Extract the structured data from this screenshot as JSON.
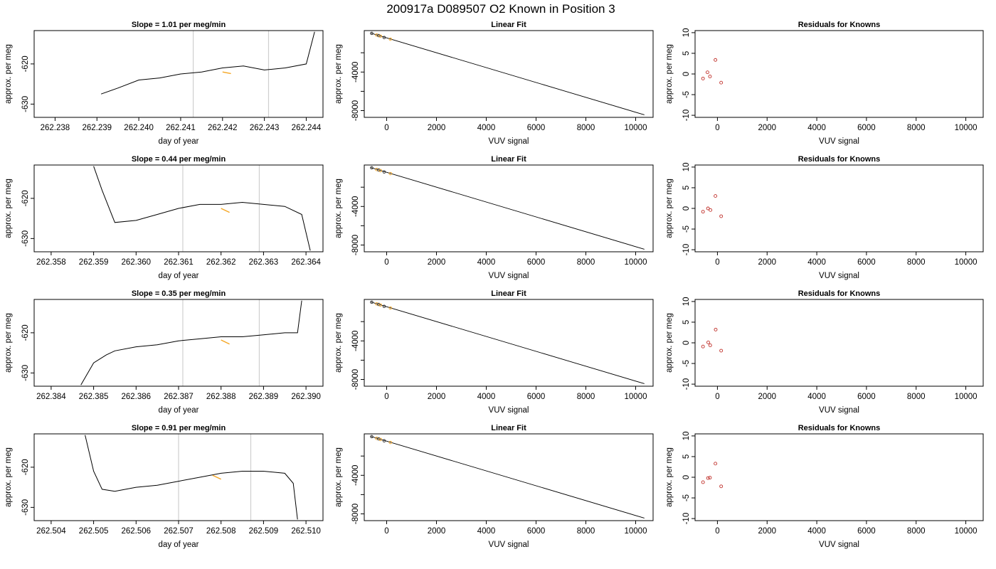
{
  "figure": {
    "title": "200917a      D089507    O2 Known in Position  3"
  },
  "chart_data": [
    {
      "type": "line",
      "row": 1,
      "panel": "time",
      "title": "Slope =  1.01  per meg/min",
      "xlabel": "day of year",
      "ylabel": "approx. per meg",
      "xlim": [
        262.2375,
        262.2444
      ],
      "ylim": [
        -633.3,
        -611.7
      ],
      "xticks": [
        "262.238",
        "262.239",
        "262.240",
        "262.241",
        "262.242",
        "262.243",
        "262.244"
      ],
      "xtick_values": [
        262.238,
        262.239,
        262.24,
        262.241,
        262.242,
        262.243,
        262.244
      ],
      "yticks": [
        "-630",
        "-620"
      ],
      "ytick_values": [
        -630,
        -620
      ],
      "vlines": [
        262.2413,
        262.2431
      ],
      "series": [
        {
          "values_x": [
            262.2391,
            262.2395,
            262.24,
            262.2405,
            262.241,
            262.2415,
            262.242,
            262.2425,
            262.243,
            262.2435,
            262.244,
            262.2442
          ],
          "values_y": [
            -627.5,
            -626.0,
            -624.0,
            -623.5,
            -622.5,
            -622.0,
            -621.0,
            -620.5,
            -621.5,
            -621.0,
            -620.0,
            -612.0
          ]
        }
      ],
      "highlight": {
        "color": "#f5a623",
        "x": [
          262.242,
          262.2422
        ],
        "y": [
          -622.0,
          -622.4
        ]
      }
    },
    {
      "type": "line",
      "row": 1,
      "panel": "fit",
      "title": "Linear Fit",
      "xlabel": "VUV signal",
      "ylabel": "approx. per meg",
      "xlim": [
        -900,
        10700
      ],
      "ylim": [
        -8700,
        300
      ],
      "xticks": [
        "0",
        "2000",
        "4000",
        "6000",
        "8000",
        "10000"
      ],
      "xtick_values": [
        0,
        2000,
        4000,
        6000,
        8000,
        10000
      ],
      "yticks": [
        "-8000",
        "-4000"
      ],
      "ytick_values": [
        -8000,
        -4000
      ],
      "minor_yticks": [
        -6000,
        -2000
      ],
      "line": {
        "x": [
          -640,
          10350
        ],
        "y": [
          40,
          -8440
        ]
      },
      "points": {
        "x": [
          -600,
          -400,
          -320,
          -250,
          -100,
          150
        ],
        "y": [
          10,
          -160,
          -220,
          -280,
          -420,
          -590
        ]
      }
    },
    {
      "type": "scatter",
      "row": 1,
      "panel": "residuals",
      "title": "Residuals for Knowns",
      "xlabel": "VUV signal",
      "ylabel": "approx. per meg",
      "xlim": [
        -900,
        10700
      ],
      "ylim": [
        -10.5,
        10.5
      ],
      "xticks": [
        "0",
        "2000",
        "4000",
        "6000",
        "8000",
        "10000"
      ],
      "xtick_values": [
        0,
        2000,
        4000,
        6000,
        8000,
        10000
      ],
      "yticks": [
        "-10",
        "-5",
        "0",
        "5",
        "10"
      ],
      "ytick_values": [
        -10,
        -5,
        0,
        5,
        10
      ],
      "points": {
        "x": [
          -580,
          -400,
          -300,
          -80,
          150
        ],
        "y": [
          -1.1,
          0.4,
          -0.6,
          3.4,
          -2.1
        ]
      }
    },
    {
      "type": "line",
      "row": 2,
      "panel": "time",
      "title": "Slope =  0.44  per meg/min",
      "xlabel": "day of year",
      "ylabel": "approx. per meg",
      "xlim": [
        262.3576,
        262.3644
      ],
      "ylim": [
        -633.3,
        -611.7
      ],
      "xticks": [
        "262.358",
        "262.359",
        "262.360",
        "262.361",
        "262.362",
        "262.363",
        "262.364"
      ],
      "xtick_values": [
        262.358,
        262.359,
        262.36,
        262.361,
        262.362,
        262.363,
        262.364
      ],
      "yticks": [
        "-630",
        "-620"
      ],
      "ytick_values": [
        -630,
        -620
      ],
      "vlines": [
        262.3611,
        262.3629
      ],
      "series": [
        {
          "values_x": [
            262.359,
            262.3592,
            262.3595,
            262.36,
            262.3605,
            262.361,
            262.3615,
            262.362,
            262.3625,
            262.363,
            262.3635,
            262.3639,
            262.3641
          ],
          "values_y": [
            -612.0,
            -618.0,
            -626.0,
            -625.5,
            -624.0,
            -622.5,
            -621.5,
            -621.5,
            -621.0,
            -621.5,
            -622.0,
            -624.0,
            -633.0
          ]
        }
      ],
      "highlight": {
        "color": "#f5a623",
        "x": [
          262.362,
          262.3622
        ],
        "y": [
          -622.5,
          -623.5
        ]
      }
    },
    {
      "type": "line",
      "row": 2,
      "panel": "fit",
      "title": "Linear Fit",
      "xlabel": "VUV signal",
      "ylabel": "approx. per meg",
      "xlim": [
        -900,
        10700
      ],
      "ylim": [
        -8700,
        300
      ],
      "xticks": [
        "0",
        "2000",
        "4000",
        "6000",
        "8000",
        "10000"
      ],
      "xtick_values": [
        0,
        2000,
        4000,
        6000,
        8000,
        10000
      ],
      "yticks": [
        "-8000",
        "-4000"
      ],
      "ytick_values": [
        -8000,
        -4000
      ],
      "minor_yticks": [
        -6000,
        -2000
      ],
      "line": {
        "x": [
          -640,
          10350
        ],
        "y": [
          40,
          -8440
        ]
      },
      "points": {
        "x": [
          -600,
          -400,
          -320,
          -250,
          -100,
          150
        ],
        "y": [
          10,
          -160,
          -220,
          -280,
          -420,
          -590
        ]
      }
    },
    {
      "type": "scatter",
      "row": 2,
      "panel": "residuals",
      "title": "Residuals for Knowns",
      "xlabel": "VUV signal",
      "ylabel": "approx. per meg",
      "xlim": [
        -900,
        10700
      ],
      "ylim": [
        -10.5,
        10.5
      ],
      "xticks": [
        "0",
        "2000",
        "4000",
        "6000",
        "8000",
        "10000"
      ],
      "xtick_values": [
        0,
        2000,
        4000,
        6000,
        8000,
        10000
      ],
      "yticks": [
        "-10",
        "-5",
        "0",
        "5",
        "10"
      ],
      "ytick_values": [
        -10,
        -5,
        0,
        5,
        10
      ],
      "points": {
        "x": [
          -580,
          -380,
          -280,
          -80,
          150
        ],
        "y": [
          -0.8,
          0.0,
          -0.4,
          3.0,
          -1.9
        ]
      }
    },
    {
      "type": "line",
      "row": 3,
      "panel": "time",
      "title": "Slope =  0.35  per meg/min",
      "xlabel": "day of year",
      "ylabel": "approx. per meg",
      "xlim": [
        262.3836,
        262.3904
      ],
      "ylim": [
        -633.3,
        -611.7
      ],
      "xticks": [
        "262.384",
        "262.385",
        "262.386",
        "262.387",
        "262.388",
        "262.389",
        "262.390"
      ],
      "xtick_values": [
        262.384,
        262.385,
        262.386,
        262.387,
        262.388,
        262.389,
        262.39
      ],
      "yticks": [
        "-630",
        "-620"
      ],
      "ytick_values": [
        -630,
        -620
      ],
      "vlines": [
        262.3871,
        262.3889
      ],
      "series": [
        {
          "values_x": [
            262.3847,
            262.385,
            262.3853,
            262.3855,
            262.386,
            262.3865,
            262.387,
            262.3875,
            262.388,
            262.3885,
            262.389,
            262.3895,
            262.3898,
            262.3899
          ],
          "values_y": [
            -633.0,
            -627.5,
            -625.5,
            -624.5,
            -623.5,
            -623.0,
            -622.0,
            -621.5,
            -621.0,
            -621.0,
            -620.5,
            -620.0,
            -620.0,
            -612.0
          ]
        }
      ],
      "highlight": {
        "color": "#f5a623",
        "x": [
          262.388,
          262.3882
        ],
        "y": [
          -621.8,
          -622.8
        ]
      }
    },
    {
      "type": "line",
      "row": 3,
      "panel": "fit",
      "title": "Linear Fit",
      "xlabel": "VUV signal",
      "ylabel": "approx. per meg",
      "xlim": [
        -900,
        10700
      ],
      "ylim": [
        -8700,
        300
      ],
      "xticks": [
        "0",
        "2000",
        "4000",
        "6000",
        "8000",
        "10000"
      ],
      "xtick_values": [
        0,
        2000,
        4000,
        6000,
        8000,
        10000
      ],
      "yticks": [
        "-8000",
        "-4000"
      ],
      "ytick_values": [
        -8000,
        -4000
      ],
      "minor_yticks": [
        -6000,
        -2000
      ],
      "line": {
        "x": [
          -640,
          10350
        ],
        "y": [
          40,
          -8440
        ]
      },
      "points": {
        "x": [
          -600,
          -400,
          -320,
          -250,
          -100,
          150
        ],
        "y": [
          10,
          -160,
          -220,
          -280,
          -420,
          -590
        ]
      }
    },
    {
      "type": "scatter",
      "row": 3,
      "panel": "residuals",
      "title": "Residuals for Knowns",
      "xlabel": "VUV signal",
      "ylabel": "approx. per meg",
      "xlim": [
        -900,
        10700
      ],
      "ylim": [
        -10.5,
        10.5
      ],
      "xticks": [
        "0",
        "2000",
        "4000",
        "6000",
        "8000",
        "10000"
      ],
      "xtick_values": [
        0,
        2000,
        4000,
        6000,
        8000,
        10000
      ],
      "yticks": [
        "-10",
        "-5",
        "0",
        "5",
        "10"
      ],
      "ytick_values": [
        -10,
        -5,
        0,
        5,
        10
      ],
      "points": {
        "x": [
          -580,
          -370,
          -290,
          -70,
          150
        ],
        "y": [
          -0.9,
          0.1,
          -0.6,
          3.2,
          -1.9
        ]
      }
    },
    {
      "type": "line",
      "row": 4,
      "panel": "time",
      "title": "Slope =  0.91  per meg/min",
      "xlabel": "day of year",
      "ylabel": "approx. per meg",
      "xlim": [
        262.5036,
        262.5104
      ],
      "ylim": [
        -633.3,
        -611.7
      ],
      "xticks": [
        "262.504",
        "262.505",
        "262.506",
        "262.507",
        "262.508",
        "262.509",
        "262.510"
      ],
      "xtick_values": [
        262.504,
        262.505,
        262.506,
        262.507,
        262.508,
        262.509,
        262.51
      ],
      "yticks": [
        "-630",
        "-620"
      ],
      "ytick_values": [
        -630,
        -620
      ],
      "vlines": [
        262.507,
        262.5087
      ],
      "series": [
        {
          "values_x": [
            262.5048,
            262.505,
            262.5052,
            262.5055,
            262.506,
            262.5065,
            262.507,
            262.5075,
            262.508,
            262.5085,
            262.509,
            262.5095,
            262.5097,
            262.5098
          ],
          "values_y": [
            -612.0,
            -621.0,
            -625.5,
            -626.0,
            -625.0,
            -624.5,
            -623.5,
            -622.5,
            -621.5,
            -621.0,
            -621.0,
            -621.5,
            -624.0,
            -633.0
          ]
        }
      ],
      "highlight": {
        "color": "#f5a623",
        "x": [
          262.5078,
          262.508
        ],
        "y": [
          -622.0,
          -623.0
        ]
      }
    },
    {
      "type": "line",
      "row": 4,
      "panel": "fit",
      "title": "Linear Fit",
      "xlabel": "VUV signal",
      "ylabel": "approx. per meg",
      "xlim": [
        -900,
        10700
      ],
      "ylim": [
        -8700,
        300
      ],
      "xticks": [
        "0",
        "2000",
        "4000",
        "6000",
        "8000",
        "10000"
      ],
      "xtick_values": [
        0,
        2000,
        4000,
        6000,
        8000,
        10000
      ],
      "yticks": [
        "-8000",
        "-4000"
      ],
      "ytick_values": [
        -8000,
        -4000
      ],
      "minor_yticks": [
        -6000,
        -2000
      ],
      "line": {
        "x": [
          -640,
          10350
        ],
        "y": [
          40,
          -8440
        ]
      },
      "points": {
        "x": [
          -600,
          -400,
          -320,
          -250,
          -100,
          150
        ],
        "y": [
          10,
          -160,
          -220,
          -280,
          -420,
          -590
        ]
      }
    },
    {
      "type": "scatter",
      "row": 4,
      "panel": "residuals",
      "title": "Residuals for Knowns",
      "xlabel": "VUV signal",
      "ylabel": "approx. per meg",
      "xlim": [
        -900,
        10700
      ],
      "ylim": [
        -10.5,
        10.5
      ],
      "xticks": [
        "0",
        "2000",
        "4000",
        "6000",
        "8000",
        "10000"
      ],
      "xtick_values": [
        0,
        2000,
        4000,
        6000,
        8000,
        10000
      ],
      "yticks": [
        "-10",
        "-5",
        "0",
        "5",
        "10"
      ],
      "ytick_values": [
        -10,
        -5,
        0,
        5,
        10
      ],
      "points": {
        "x": [
          -580,
          -380,
          -300,
          -80,
          150
        ],
        "y": [
          -1.2,
          -0.2,
          -0.1,
          3.3,
          -2.2
        ]
      }
    }
  ]
}
